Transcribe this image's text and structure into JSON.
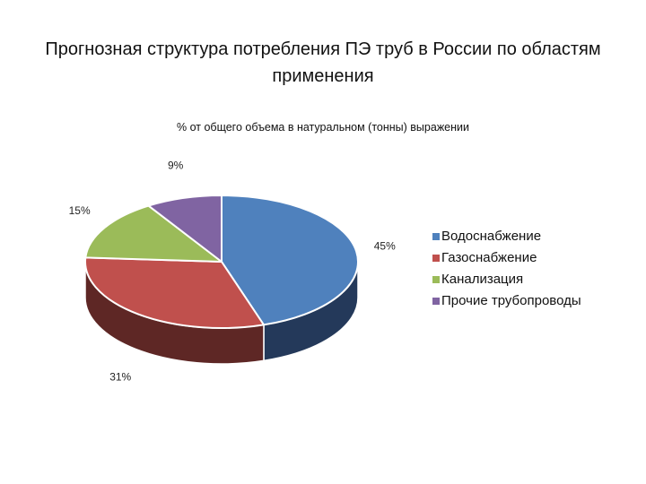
{
  "chart_data": {
    "type": "pie",
    "title": "Прогнозная структура потребления ПЭ труб в России по областям применения",
    "subtitle": "% от общего объема в натуральном (тонны) выражении",
    "categories": [
      "Водоснабжение",
      "Газоснабжение",
      "Канализация",
      "Прочие трубопроводы"
    ],
    "values": [
      45,
      31,
      15,
      9
    ],
    "labels": [
      "45%",
      "31%",
      "15%",
      "9%"
    ],
    "unit": "%",
    "colors": [
      "#4F81BD",
      "#C0504D",
      "#9BBB59",
      "#8064A2"
    ],
    "side_colors": [
      "#24395A",
      "#5E2725",
      "#4F6130",
      "#413155"
    ],
    "legend_position": "right",
    "style": "3d-pie"
  }
}
